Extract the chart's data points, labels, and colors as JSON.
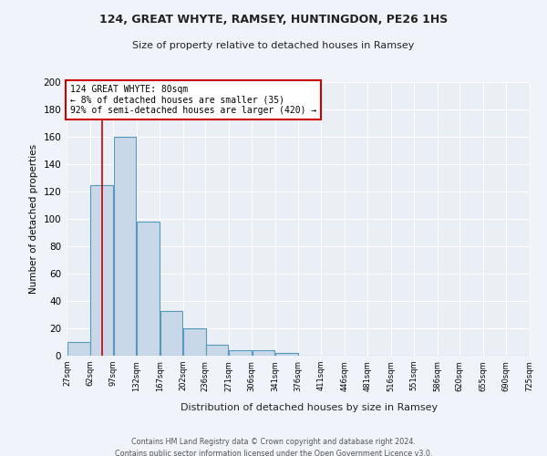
{
  "title1": "124, GREAT WHYTE, RAMSEY, HUNTINGDON, PE26 1HS",
  "title2": "Size of property relative to detached houses in Ramsey",
  "xlabel": "Distribution of detached houses by size in Ramsey",
  "ylabel": "Number of detached properties",
  "bin_edges": [
    27,
    62,
    97,
    132,
    167,
    202,
    236,
    271,
    306,
    341,
    376,
    411,
    446,
    481,
    516,
    551,
    586,
    620,
    655,
    690,
    725
  ],
  "bar_heights": [
    10,
    125,
    160,
    98,
    33,
    20,
    8,
    4,
    4,
    2,
    0,
    0,
    0,
    0,
    0,
    0,
    0,
    0,
    0,
    0
  ],
  "bar_color": "#c8d8e8",
  "bar_edge_color": "#5599bb",
  "bar_edge_width": 0.8,
  "red_line_x": 80,
  "red_line_color": "#cc0000",
  "annotation_text": "124 GREAT WHYTE: 80sqm\n← 8% of detached houses are smaller (35)\n92% of semi-detached houses are larger (420) →",
  "annotation_box_color": "#ffffff",
  "annotation_box_edge_color": "#cc0000",
  "ylim": [
    0,
    200
  ],
  "yticks": [
    0,
    20,
    40,
    60,
    80,
    100,
    120,
    140,
    160,
    180,
    200
  ],
  "background_color": "#eaeef5",
  "grid_color": "#ffffff",
  "footer1": "Contains HM Land Registry data © Crown copyright and database right 2024.",
  "footer2": "Contains public sector information licensed under the Open Government Licence v3.0."
}
